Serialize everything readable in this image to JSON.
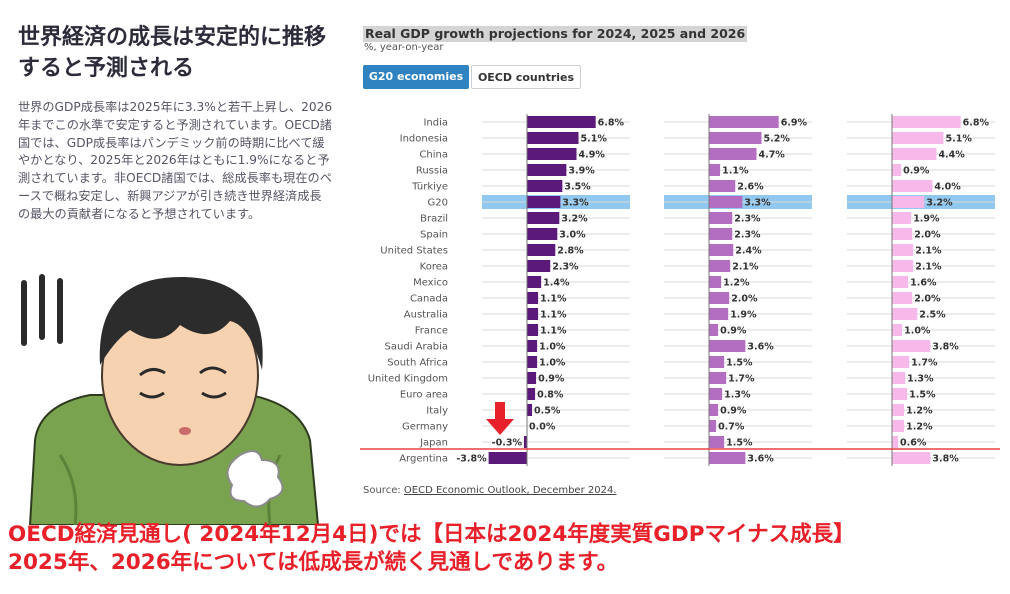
{
  "left": {
    "heading": "世界経済の成長は安定的に推移すると予測される",
    "body": "世界のGDP成長率は2025年に3.3%と若干上昇し、2026年までこの水準で安定すると予測されています。OECD諸国では、GDP成長率はパンデミック前の時期に比べて緩やかとなり、2025年と2026年はともに1.9%になると予測されています。非OECD諸国では、総成長率も現在のペースで概ね安定し、新興アジアが引き続き世界経済成長の最大の貢献者になると予想されています。"
  },
  "tabs": {
    "active": "G20 economies",
    "inactive": "OECD countries"
  },
  "source": {
    "prefix": "Source: ",
    "link": "OECD Economic Outlook, December 2024."
  },
  "caption": {
    "line1": "OECD経済見通し( 2024年12月4日)では【日本は2024年度実質GDPマイナス成長】",
    "line2": "2025年、2026年については低成長が続く見通しであります。"
  },
  "colors": {
    "y2024": "#5b1a7a",
    "y2025": "#b36ec2",
    "y2026": "#f7b8ea",
    "highlight": "#90c8f0",
    "caption": "#e8202a",
    "arrow": "#e8202a",
    "hline": "#e84040"
  },
  "chart_data": {
    "type": "bar",
    "title": "Real GDP growth projections for 2024, 2025 and 2026",
    "subtitle": "%, year-on-year",
    "highlight_category": "G20",
    "categories": [
      "India",
      "Indonesia",
      "China",
      "Russia",
      "Türkiye",
      "G20",
      "Brazil",
      "Spain",
      "United States",
      "Korea",
      "Mexico",
      "Canada",
      "Australia",
      "France",
      "Saudi Arabia",
      "South Africa",
      "United Kingdom",
      "Euro area",
      "Italy",
      "Germany",
      "Japan",
      "Argentina"
    ],
    "series": [
      {
        "values": [
          6.8,
          5.1,
          4.9,
          3.9,
          3.5,
          3.3,
          3.2,
          3.0,
          2.8,
          2.3,
          1.4,
          1.1,
          1.1,
          1.1,
          1.0,
          1.0,
          0.9,
          0.8,
          0.5,
          0.0,
          -0.3,
          -3.8
        ]
      },
      {
        "values": [
          6.9,
          5.2,
          4.7,
          1.1,
          2.6,
          3.3,
          2.3,
          2.3,
          2.4,
          2.1,
          1.2,
          2.0,
          1.9,
          0.9,
          3.6,
          1.5,
          1.7,
          1.3,
          0.9,
          0.7,
          1.5,
          3.6
        ]
      },
      {
        "values": [
          6.8,
          5.1,
          4.4,
          0.9,
          4.0,
          3.2,
          1.9,
          2.0,
          2.1,
          2.1,
          1.6,
          2.0,
          2.5,
          1.0,
          3.8,
          1.7,
          1.3,
          1.5,
          1.2,
          1.2,
          0.6,
          3.8
        ]
      }
    ]
  }
}
